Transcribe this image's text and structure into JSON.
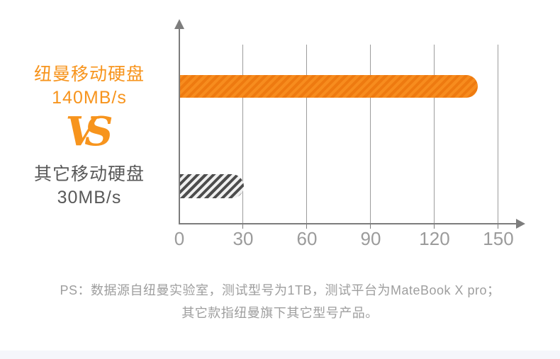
{
  "chart_data": {
    "type": "bar",
    "orientation": "horizontal",
    "categories": [
      "纽曼移动硬盘",
      "其它移动硬盘"
    ],
    "values": [
      140,
      30
    ],
    "unit": "MB/s",
    "x_ticks": [
      0,
      30,
      60,
      90,
      120,
      150
    ],
    "xlim": [
      0,
      150
    ],
    "grid": true,
    "legend": "none",
    "bar_styles": [
      "orange-diagonal-hatch",
      "gray-diagonal-hatch"
    ]
  },
  "left_panel": {
    "series1_name": "纽曼移动硬盘",
    "series1_value": "140MB/s",
    "vs_label": "VS",
    "series2_name": "其它移动硬盘",
    "series2_value": "30MB/s"
  },
  "axis": {
    "tick_labels": [
      "0",
      "30",
      "60",
      "90",
      "120",
      "150"
    ]
  },
  "footnote": {
    "line1": "PS：数据源自纽曼实验室，测试型号为1TB，测试平台为MateBook X pro；",
    "line2": "其它款指纽曼旗下其它型号产品。"
  },
  "colors": {
    "accent_orange": "#f7941d",
    "bar_orange": "#ee7a10",
    "bar_gray": "#4d4d4d",
    "label_gray": "#595959",
    "tick_gray": "#9b9b9b",
    "footnote_gray": "#9e9e9e",
    "axis_gray": "#7d7d7d",
    "bottom_bar": "#f5f6fb"
  }
}
